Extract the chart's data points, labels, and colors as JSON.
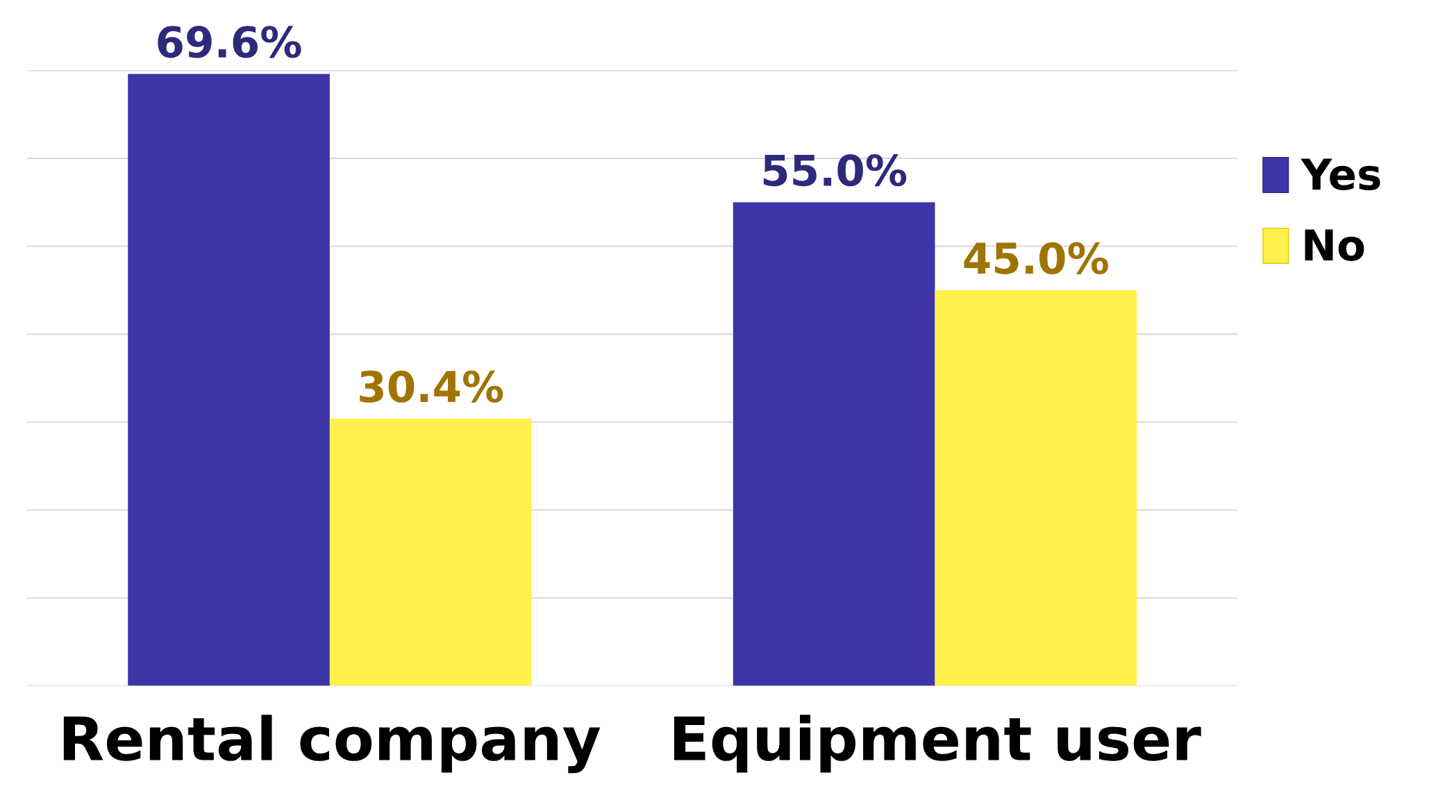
{
  "chart_data": {
    "type": "bar",
    "categories": [
      "Rental company",
      "Equipment user"
    ],
    "series": [
      {
        "name": "Yes",
        "color": "#3d35a8",
        "values": [
          69.6,
          55.0
        ],
        "value_labels": [
          "69.6%",
          "55.0%"
        ]
      },
      {
        "name": "No",
        "color": "#fff04a",
        "values": [
          30.4,
          45.0
        ],
        "value_labels": [
          "30.4%",
          "45.0%"
        ]
      }
    ],
    "ylim": [
      0,
      70
    ],
    "yticks": [
      {
        "value": 0,
        "label": null
      },
      {
        "value": 10,
        "label": null
      },
      {
        "value": 20,
        "label": null
      },
      {
        "value": 30,
        "label": null
      },
      {
        "value": 40,
        "label": null
      },
      {
        "value": 50,
        "label": null
      },
      {
        "value": 60,
        "label": null
      },
      {
        "value": 70,
        "label": null
      }
    ],
    "grid": "y",
    "legend": "right"
  }
}
